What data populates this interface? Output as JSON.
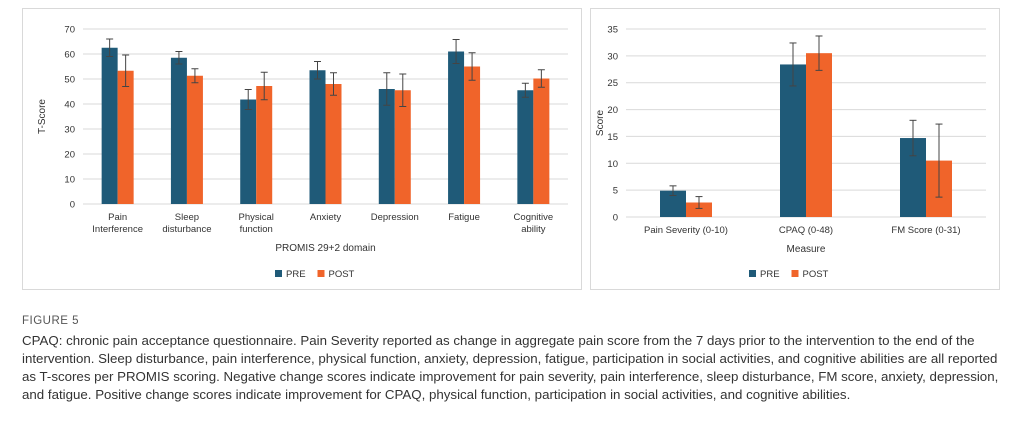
{
  "colors": {
    "pre": "#1f5a78",
    "post": "#f0642a",
    "grid": "#d9d9d9",
    "error": "#444444"
  },
  "chart_data": [
    {
      "type": "bar",
      "xlabel": "PROMIS 29+2 domain",
      "ylabel": "T-Score",
      "ylim": [
        0,
        70
      ],
      "yticks": [
        0,
        10,
        20,
        30,
        40,
        50,
        60,
        70
      ],
      "grid": true,
      "legend_position": "bottom",
      "categories": [
        "Pain\nInterference",
        "Sleep\ndisturbance",
        "Physical\nfunction",
        "Anxiety",
        "Depression",
        "Fatigue",
        "Cognitive\nability"
      ],
      "series": [
        {
          "name": "PRE",
          "values": [
            62.5,
            58.5,
            41.8,
            53.5,
            46.0,
            61.0,
            45.5
          ],
          "errors": [
            3.5,
            2.5,
            4.0,
            3.5,
            6.5,
            4.8,
            2.8
          ]
        },
        {
          "name": "POST",
          "values": [
            53.3,
            51.3,
            47.2,
            48.0,
            45.5,
            55.0,
            50.2
          ],
          "errors": [
            6.3,
            2.8,
            5.5,
            4.5,
            6.5,
            5.5,
            3.5
          ]
        }
      ]
    },
    {
      "type": "bar",
      "xlabel": "Measure",
      "ylabel": "Score",
      "ylim": [
        0,
        35
      ],
      "yticks": [
        0,
        5,
        10,
        15,
        20,
        25,
        30,
        35
      ],
      "grid": true,
      "legend_position": "bottom",
      "categories": [
        "Pain Severity (0-10)",
        "CPAQ (0-48)",
        "FM Score (0-31)"
      ],
      "series": [
        {
          "name": "PRE",
          "values": [
            4.9,
            28.4,
            14.7
          ],
          "errors": [
            0.9,
            4.0,
            3.3
          ]
        },
        {
          "name": "POST",
          "values": [
            2.7,
            30.5,
            10.5
          ],
          "errors": [
            1.1,
            3.2,
            6.8
          ]
        }
      ]
    }
  ],
  "figure_label": "FIGURE 5",
  "caption": "CPAQ: chronic pain acceptance questionnaire. Pain Severity reported as change in aggregate pain score from the 7 days prior to the intervention to the end of the intervention. Sleep disturbance, pain interference, physical function, anxiety, depression, fatigue, participation in social activities, and cognitive abilities are all reported as T-scores per PROMIS scoring. Negative change scores indicate improvement for pain severity, pain interference, sleep disturbance, FM score, anxiety, depression, and fatigue. Positive change scores indicate improvement for CPAQ, physical function, participation in social activities, and cognitive abilities."
}
